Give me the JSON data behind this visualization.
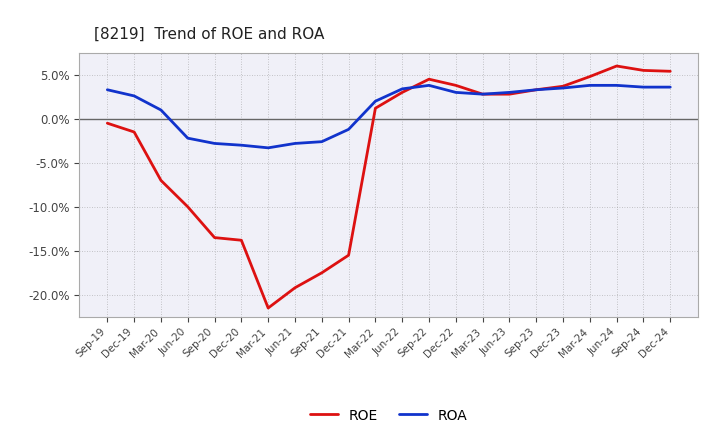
{
  "title": "[8219]  Trend of ROE and ROA",
  "x_labels": [
    "Sep-19",
    "Dec-19",
    "Mar-20",
    "Jun-20",
    "Sep-20",
    "Dec-20",
    "Mar-21",
    "Jun-21",
    "Sep-21",
    "Dec-21",
    "Mar-22",
    "Jun-22",
    "Sep-22",
    "Dec-22",
    "Mar-23",
    "Jun-23",
    "Sep-23",
    "Dec-23",
    "Mar-24",
    "Jun-24",
    "Sep-24",
    "Dec-24"
  ],
  "roe": [
    -0.005,
    -0.015,
    -0.07,
    -0.1,
    -0.135,
    -0.138,
    -0.215,
    -0.192,
    -0.175,
    -0.155,
    0.012,
    0.03,
    0.045,
    0.038,
    0.028,
    0.028,
    0.033,
    0.037,
    0.048,
    0.06,
    0.055,
    0.054
  ],
  "roa": [
    0.033,
    0.026,
    0.01,
    -0.022,
    -0.028,
    -0.03,
    -0.033,
    -0.028,
    -0.026,
    -0.012,
    0.02,
    0.034,
    0.038,
    0.03,
    0.028,
    0.03,
    0.033,
    0.035,
    0.038,
    0.038,
    0.036,
    0.036
  ],
  "roe_color": "#dd1111",
  "roa_color": "#1133cc",
  "background_color": "#ffffff",
  "plot_bg_color": "#f0f0f8",
  "grid_color": "#999999",
  "zero_line_color": "#666666",
  "ylim": [
    -0.225,
    0.075
  ],
  "yticks": [
    -0.2,
    -0.15,
    -0.1,
    -0.05,
    0.0,
    0.05
  ],
  "line_width": 2.0
}
